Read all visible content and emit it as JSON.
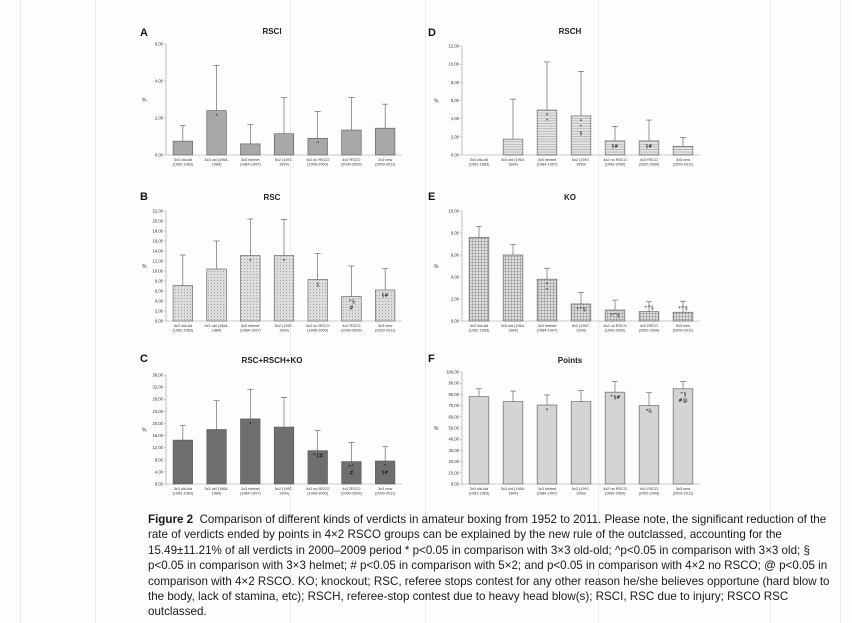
{
  "caption": {
    "label": "Figure 2",
    "text": "Comparison of different kinds of verdicts in amateur boxing from 1952 to 2011. Please note, the significant reduction of the rate of verdicts ended by points in 4×2 RSCO groups can be explained by the new rule of the outclassed, accounting for the 15.49±11.21% of all verdicts in 2000–2009 period * p<0.05 in comparison with 3×3 old-old; ^p<0.05 in comparison with 3×3 old; § p<0.05 in comparison with 3×3 helmet; # p<0.05 in comparison with 5×2; and p<0.05 in comparison with 4×2 no RSCO; @ p<0.05 in comparison with 4×2 RSCO. KO; knockout; RSC, referee stops contest for any other reason he/she believes opportune (hard blow to the body, lack of stamina, etc); RSCH, referee-stop contest due to heavy head blow(s); RSCI, RSC due to injury; RSCO RSC outclassed."
  },
  "colors": {
    "light_gray": "#d4d4d4",
    "mid_gray": "#a8a8a8",
    "dark_gray": "#6f6f6f",
    "light": "#e2e2e2",
    "stroke": "#555555",
    "axis": "#999999"
  },
  "chart_data": [
    {
      "letter": "A",
      "title": "RSCI",
      "type": "bar",
      "ylabel": "%",
      "yticks": [
        "0,00",
        "2,00",
        "4,00",
        "6,00"
      ],
      "ylim": [
        0,
        6
      ],
      "fill": "mid_gray",
      "pattern": "none",
      "categories": [
        [
          "3x3 old-old",
          "(1952-1963)"
        ],
        [
          "3x3 old (1964-",
          "1984)"
        ],
        [
          "3x3 helmet",
          "(1984-1997)"
        ],
        [
          "5x2 (1997-",
          "1999)"
        ],
        [
          "4x2 no RSCO",
          "(1999-2000)"
        ],
        [
          "4x2 RSCO",
          "(2000-2009)"
        ],
        [
          "3x3 new",
          "(2009-2011)"
        ]
      ],
      "values": [
        0.75,
        2.4,
        0.6,
        1.15,
        0.9,
        1.35,
        1.45
      ],
      "errors": [
        0.85,
        2.45,
        1.05,
        1.95,
        1.45,
        1.75,
        1.3
      ],
      "marks": [
        [],
        [
          "*"
        ],
        [],
        [],
        [
          "^"
        ],
        [],
        []
      ]
    },
    {
      "letter": "B",
      "title": "RSC",
      "type": "bar",
      "ylabel": "%",
      "yticks": [
        "0,00",
        "2,00",
        "4,00",
        "6,00",
        "8,00",
        "10,00",
        "12,00",
        "14,00",
        "16,00",
        "18,00",
        "20,00",
        "22,00"
      ],
      "ylim": [
        0,
        22
      ],
      "fill": "light_gray",
      "pattern": "dots",
      "categories": [
        [
          "3x3 old-old",
          "(1952-1963)"
        ],
        [
          "3x3 old (1964-",
          "1984)"
        ],
        [
          "3x3 helmet",
          "(1984-1997)"
        ],
        [
          "5x2 (1997-",
          "1999)"
        ],
        [
          "4x2 no RSCO",
          "(1999-2000)"
        ],
        [
          "4x2 RSCO",
          "(2000-2009)"
        ],
        [
          "3x3 new",
          "(2009-2011)"
        ]
      ],
      "values": [
        7.1,
        10.4,
        13.1,
        13.1,
        8.3,
        4.9,
        6.2
      ],
      "errors": [
        6.1,
        5.6,
        7.3,
        7.2,
        5.2,
        6.1,
        4.3
      ],
      "marks": [
        [],
        [],
        [
          "*"
        ],
        [
          "*"
        ],
        [
          "§"
        ],
        [
          "^§",
          "#"
        ],
        [
          "§#"
        ]
      ]
    },
    {
      "letter": "C",
      "title": "RSC+RSCH+KO",
      "type": "bar",
      "ylabel": "%",
      "yticks": [
        "0,00",
        "4,00",
        "8,00",
        "12,00",
        "16,00",
        "20,00",
        "24,00",
        "28,00",
        "32,00",
        "36,00"
      ],
      "ylim": [
        0,
        36
      ],
      "fill": "dark_gray",
      "pattern": "none",
      "categories": [
        [
          "3x3 old-old",
          "(1952-1963)"
        ],
        [
          "3x3 old (1964-",
          "1984)"
        ],
        [
          "3x3 helmet",
          "(1984-1997)"
        ],
        [
          "5x2 (1997-",
          "1999)"
        ],
        [
          "4x2 no RSCO",
          "(1999-2000)"
        ],
        [
          "4x2 RSCO",
          "(2000-2009)"
        ],
        [
          "3x3 new",
          "(2009-2011)"
        ]
      ],
      "values": [
        14.5,
        18.0,
        21.5,
        18.8,
        11.0,
        7.4,
        7.6
      ],
      "errors": [
        4.8,
        9.5,
        9.8,
        9.8,
        6.6,
        6.3,
        4.7
      ],
      "marks": [
        [],
        [],
        [
          "*"
        ],
        [],
        [
          "^§#"
        ],
        [
          "*^",
          "#"
        ],
        [
          "^",
          "§#"
        ]
      ]
    },
    {
      "letter": "D",
      "title": "RSCH",
      "type": "bar",
      "ylabel": "%",
      "yticks": [
        "0,00",
        "2,00",
        "4,00",
        "6,00",
        "8,00",
        "10,00",
        "12,00"
      ],
      "ylim": [
        0,
        12
      ],
      "fill": "light",
      "pattern": "lines",
      "categories": [
        [
          "3x3 old-old",
          "(1952-1963)"
        ],
        [
          "3x3 old (1964-",
          "1984)"
        ],
        [
          "3x3 helmet",
          "(1984-1997)"
        ],
        [
          "5x2 (1997-",
          "1999)"
        ],
        [
          "4x2 no RSCO",
          "(1999-2000)"
        ],
        [
          "4x2 RSCO",
          "(2000-2009)"
        ],
        [
          "3x3 new",
          "(2009-2011)"
        ]
      ],
      "values": [
        0.0,
        1.75,
        4.95,
        4.3,
        1.55,
        1.55,
        0.95
      ],
      "errors": [
        0.0,
        4.4,
        5.3,
        4.9,
        1.6,
        2.3,
        1.0
      ],
      "marks": [
        [],
        [],
        [
          "*",
          "^"
        ],
        [
          "*",
          "^",
          "§"
        ],
        [
          "§#"
        ],
        [
          "§#"
        ],
        []
      ]
    },
    {
      "letter": "E",
      "title": "KO",
      "type": "bar",
      "ylabel": "%",
      "yticks": [
        "0,00",
        "2,00",
        "4,00",
        "6,00",
        "8,00",
        "10,00"
      ],
      "ylim": [
        0,
        10
      ],
      "fill": "light_gray",
      "pattern": "cross",
      "categories": [
        [
          "3x3 old-old",
          "(1952-1963)"
        ],
        [
          "3x3 old (1964-",
          "1984)"
        ],
        [
          "3x3 helmet",
          "(1984-1997)"
        ],
        [
          "5x2 (1997-",
          "1999)"
        ],
        [
          "4x2 no RSCO",
          "(1999-2000)"
        ],
        [
          "4x2 RSCO",
          "(2000-2009)"
        ],
        [
          "3x3 new",
          "(2009-2011)"
        ]
      ],
      "values": [
        7.6,
        6.0,
        3.8,
        1.55,
        1.0,
        0.85,
        0.8
      ],
      "errors": [
        1.0,
        0.95,
        1.0,
        1.05,
        0.9,
        0.9,
        1.0
      ],
      "marks": [
        [],
        [],
        [
          "*",
          "^"
        ],
        [
          "*^§"
        ],
        [
          "*^§"
        ],
        [
          "*^§"
        ],
        [
          "*^§"
        ]
      ]
    },
    {
      "letter": "F",
      "title": "Points",
      "type": "bar",
      "ylabel": "%",
      "yticks": [
        "0,00",
        "10,00",
        "20,00",
        "30,00",
        "40,00",
        "50,00",
        "60,00",
        "70,00",
        "80,00",
        "90,00",
        "100,00"
      ],
      "ylim": [
        0,
        100
      ],
      "fill": "light_gray",
      "pattern": "none",
      "categories": [
        [
          "3x3 old-old",
          "(1952-1963)"
        ],
        [
          "3x3 old (1964-",
          "1984)"
        ],
        [
          "3x3 helmet",
          "(1984-1997)"
        ],
        [
          "5x2 (1997-",
          "1999)"
        ],
        [
          "4x2 no RSCO",
          "(1999-2000)"
        ],
        [
          "4x2 RSCO",
          "(2000-2009)"
        ],
        [
          "3x3 new",
          "(2009-2011)"
        ]
      ],
      "values": [
        78.0,
        73.5,
        70.5,
        73.5,
        82.0,
        70.0,
        85.0
      ],
      "errors": [
        7.0,
        9.5,
        9.0,
        10.0,
        9.5,
        11.5,
        6.5
      ],
      "marks": [
        [],
        [],
        [
          "*"
        ],
        [],
        [
          "^§#"
        ],
        [
          "*&"
        ],
        [
          "^§",
          "#@"
        ]
      ]
    }
  ]
}
